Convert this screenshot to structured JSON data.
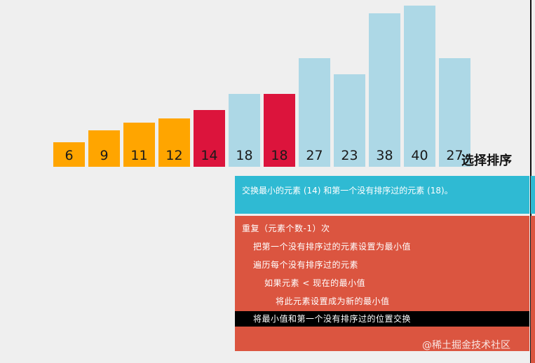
{
  "visualization": {
    "title": "选择排序",
    "bars": [
      {
        "value": 6,
        "label": "6",
        "state": "sorted"
      },
      {
        "value": 9,
        "label": "9",
        "state": "sorted"
      },
      {
        "value": 11,
        "label": "11",
        "state": "sorted"
      },
      {
        "value": 12,
        "label": "12",
        "state": "sorted"
      },
      {
        "value": 14,
        "label": "14",
        "state": "swap"
      },
      {
        "value": 18,
        "label": "18",
        "state": "unsorted"
      },
      {
        "value": 18,
        "label": "18",
        "state": "swap"
      },
      {
        "value": 27,
        "label": "27",
        "state": "unsorted"
      },
      {
        "value": 23,
        "label": "23",
        "state": "unsorted"
      },
      {
        "value": 38,
        "label": "38",
        "state": "unsorted"
      },
      {
        "value": 40,
        "label": "40",
        "state": "unsorted"
      },
      {
        "value": 27,
        "label": "27",
        "state": "unsorted"
      }
    ],
    "colors": {
      "sorted": "#ffa500",
      "swap": "#dc143c",
      "unsorted": "#add8e6"
    }
  },
  "status": {
    "message": "交换最小的元素 (14) 和第一个没有排序过的元素 (18)。",
    "color": "#2fbad3"
  },
  "pseudocode": {
    "color": "#db5540",
    "active_color": "#000000",
    "lines": [
      {
        "text": "重复（元素个数-1）次",
        "indent": 0,
        "active": false
      },
      {
        "text": "把第一个没有排序过的元素设置为最小值",
        "indent": 1,
        "active": false
      },
      {
        "text": "遍历每个没有排序过的元素",
        "indent": 1,
        "active": false
      },
      {
        "text": "如果元素 < 现在的最小值",
        "indent": 2,
        "active": false
      },
      {
        "text": "将此元素设置成为新的最小值",
        "indent": 3,
        "active": false
      },
      {
        "text": "将最小值和第一个没有排序过的位置交换",
        "indent": 1,
        "active": true
      }
    ]
  },
  "watermark": "@稀土掘金技术社区"
}
